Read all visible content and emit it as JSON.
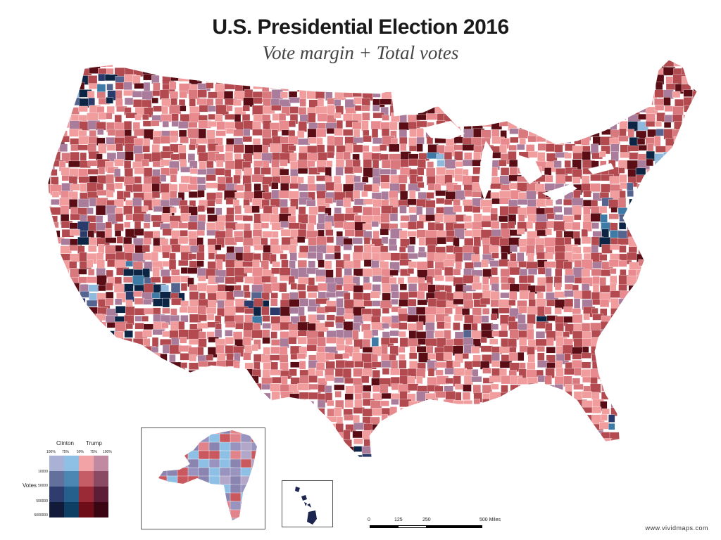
{
  "header": {
    "title": "U.S. Presidential Election 2016",
    "subtitle": "Vote margin + Total votes"
  },
  "colors": {
    "clinton_low": "#8fb8dd",
    "clinton_mid": "#3e7aa6",
    "clinton_high": "#0d2545",
    "trump_low": "#f19c9d",
    "trump_mid": "#b34a50",
    "trump_high": "#5a0d15",
    "mixed": "#a97c9c",
    "background": "#ffffff"
  },
  "legend": {
    "candidates": [
      "Clinton",
      "Trump"
    ],
    "percent_labels": [
      "100%",
      "75%",
      "50%",
      "75%",
      "100%"
    ],
    "votes_label": "Votes",
    "vote_levels": [
      "10000",
      "50000",
      "500000",
      "5000000"
    ],
    "grid_colors": [
      [
        "#a9b2d4",
        "#8ec0e6",
        "#f2a3a6",
        "#c08aa3"
      ],
      [
        "#64709c",
        "#4b87b2",
        "#c45d65",
        "#8a4a64"
      ],
      [
        "#2e3d6e",
        "#25608d",
        "#9a2a35",
        "#5e1d36"
      ],
      [
        "#121a3a",
        "#0d3f64",
        "#6e0d17",
        "#3a0614"
      ]
    ]
  },
  "scale": {
    "labels": [
      "0",
      "125",
      "250",
      "500 Miles"
    ]
  },
  "insets": {
    "alaska": "Alaska",
    "hawaii": "Hawaii"
  },
  "credit": "www.vividmaps.com"
}
